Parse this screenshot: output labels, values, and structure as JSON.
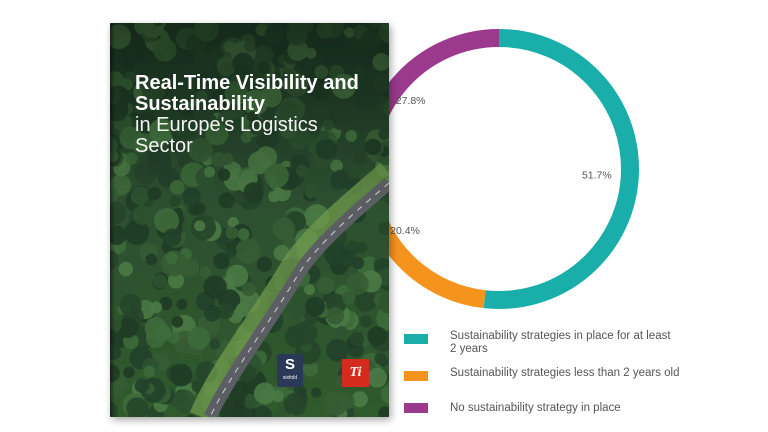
{
  "cover": {
    "title_bold": "Real-Time Visibility and Sustainability",
    "title_light": "in Europe's Logistics Sector",
    "logo_sixfold_glyph": "S",
    "logo_sixfold_word": "sixfold",
    "logo_ti": "Ti"
  },
  "chart_data": {
    "type": "pie",
    "variant": "donut",
    "series": [
      {
        "label": "Sustainability strategies in place for at least 2 years",
        "value": 51.7,
        "display": "51.7%",
        "color": "#1aaeaa"
      },
      {
        "label": "Sustainability strategies less than 2 years old",
        "value": 20.4,
        "display": "20.4%",
        "color": "#f5941d"
      },
      {
        "label": "No sustainability strategy in place",
        "value": 27.8,
        "display": "27.8%",
        "color": "#9b3a8c"
      }
    ],
    "legend_position": "bottom-right"
  }
}
